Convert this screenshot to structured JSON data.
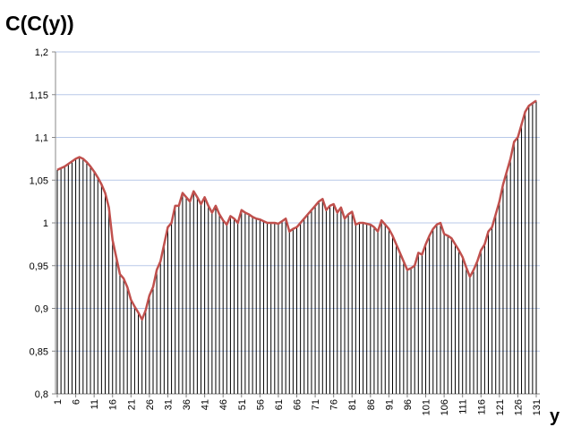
{
  "chart_data": {
    "type": "line",
    "title": "C(C(y))",
    "x_label": "y",
    "categories": [
      "1",
      null,
      null,
      null,
      null,
      "6",
      null,
      null,
      null,
      null,
      "11",
      null,
      null,
      null,
      null,
      "16",
      null,
      null,
      null,
      null,
      "21",
      null,
      null,
      null,
      null,
      "26",
      null,
      null,
      null,
      null,
      "31",
      null,
      null,
      null,
      null,
      "36",
      null,
      null,
      null,
      null,
      "41",
      null,
      null,
      null,
      null,
      "46",
      null,
      null,
      null,
      null,
      "51",
      null,
      null,
      null,
      null,
      "56",
      null,
      null,
      null,
      null,
      "61",
      null,
      null,
      null,
      null,
      "66",
      null,
      null,
      null,
      null,
      "71",
      null,
      null,
      null,
      null,
      "76",
      null,
      null,
      null,
      null,
      "81",
      null,
      null,
      null,
      null,
      "86",
      null,
      null,
      null,
      null,
      "91",
      null,
      null,
      null,
      null,
      "96",
      null,
      null,
      null,
      null,
      "101",
      null,
      null,
      null,
      null,
      "106",
      null,
      null,
      null,
      null,
      "111",
      null,
      null,
      null,
      null,
      "116",
      null,
      null,
      null,
      null,
      "121",
      null,
      null,
      null,
      null,
      "126",
      null,
      null,
      null,
      null,
      "131"
    ],
    "series": [
      {
        "color": "#c0504d",
        "drop_line_color": "#000000",
        "values": [
          1.062,
          1.064,
          1.066,
          1.069,
          1.072,
          1.075,
          1.077,
          1.075,
          1.071,
          1.066,
          1.06,
          1.053,
          1.045,
          1.035,
          1.018,
          0.98,
          0.96,
          0.94,
          0.935,
          0.925,
          0.91,
          0.902,
          0.895,
          0.887,
          0.898,
          0.915,
          0.925,
          0.945,
          0.955,
          0.975,
          0.995,
          1.0,
          1.02,
          1.02,
          1.035,
          1.03,
          1.025,
          1.037,
          1.03,
          1.022,
          1.03,
          1.02,
          1.012,
          1.02,
          1.01,
          1.003,
          0.998,
          1.008,
          1.005,
          1.0,
          1.015,
          1.012,
          1.01,
          1.007,
          1.005,
          1.004,
          1.002,
          1.0,
          1.0,
          1.0,
          0.999,
          1.002,
          1.005,
          0.99,
          0.993,
          0.995,
          1.0,
          1.005,
          1.01,
          1.015,
          1.02,
          1.025,
          1.028,
          1.015,
          1.02,
          1.022,
          1.012,
          1.018,
          1.005,
          1.01,
          1.013,
          0.998,
          1.0,
          1.0,
          0.999,
          0.998,
          0.995,
          0.99,
          1.003,
          0.998,
          0.993,
          0.985,
          0.975,
          0.965,
          0.955,
          0.945,
          0.947,
          0.95,
          0.965,
          0.963,
          0.975,
          0.985,
          0.993,
          0.998,
          1.0,
          0.987,
          0.985,
          0.982,
          0.975,
          0.968,
          0.96,
          0.948,
          0.937,
          0.945,
          0.955,
          0.968,
          0.975,
          0.99,
          0.995,
          1.01,
          1.025,
          1.045,
          1.06,
          1.075,
          1.095,
          1.1,
          1.115,
          1.13,
          1.137,
          1.14,
          1.143
        ]
      }
    ],
    "ylim": [
      0.8,
      1.2
    ],
    "yticks": [
      {
        "value": 0.8,
        "label": "0,8"
      },
      {
        "value": 0.85,
        "label": "0,85"
      },
      {
        "value": 0.9,
        "label": "0,9"
      },
      {
        "value": 0.95,
        "label": "0,95"
      },
      1,
      {
        "value": 1.05,
        "label": "1,05"
      },
      {
        "value": 1.1,
        "label": "1,1"
      },
      {
        "value": 1.15,
        "label": "1,15"
      },
      {
        "value": 1.2,
        "label": "1,2"
      }
    ],
    "grid": true,
    "grid_color": "#b8c8e8"
  }
}
